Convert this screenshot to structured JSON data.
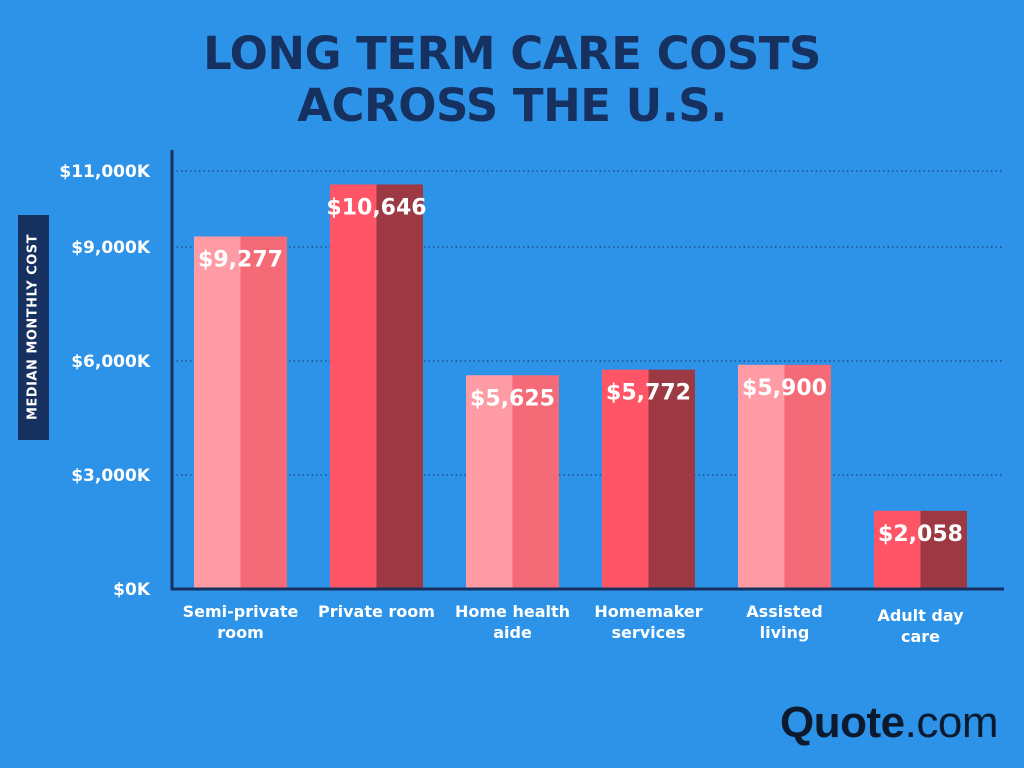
{
  "title_line1": "LONG TERM CARE COSTS",
  "title_line2": "ACROSS THE U.S.",
  "logo": {
    "bold": "Quote",
    "light": ".com"
  },
  "colors": {
    "background": "#2d93e9",
    "title": "#16305f",
    "axis": "#16305f",
    "light_left": "#ff9ba5",
    "light_right": "#f46a77",
    "dark_left": "#ff5566",
    "dark_right": "#9c3943"
  },
  "chart_data": {
    "type": "bar",
    "title": "LONG TERM CARE COSTS ACROSS THE U.S.",
    "ylabel": "MEDIAN MONTHLY COST",
    "xlabel": "",
    "ylim": [
      0,
      11000
    ],
    "yticks": [
      0,
      3000,
      6000,
      9000,
      11000
    ],
    "ytick_labels": [
      "$0K",
      "$3,000K",
      "$6,000K",
      "$9,000K",
      "$11,000K"
    ],
    "grid": "horizontal dotted",
    "categories": [
      [
        "Semi-private",
        "room"
      ],
      [
        "Private room"
      ],
      [
        "Home health",
        "aide"
      ],
      [
        "Homemaker",
        "services"
      ],
      [
        "Assisted",
        "living"
      ],
      [
        "Adult day",
        "care"
      ]
    ],
    "values": [
      9277,
      10646,
      5625,
      5772,
      5900,
      2058
    ],
    "value_labels": [
      "$9,277",
      "$10,646",
      "$5,625",
      "$5,772",
      "$5,900",
      "$2,058"
    ],
    "bar_style": [
      "light",
      "dark",
      "light",
      "dark",
      "light",
      "dark"
    ]
  }
}
